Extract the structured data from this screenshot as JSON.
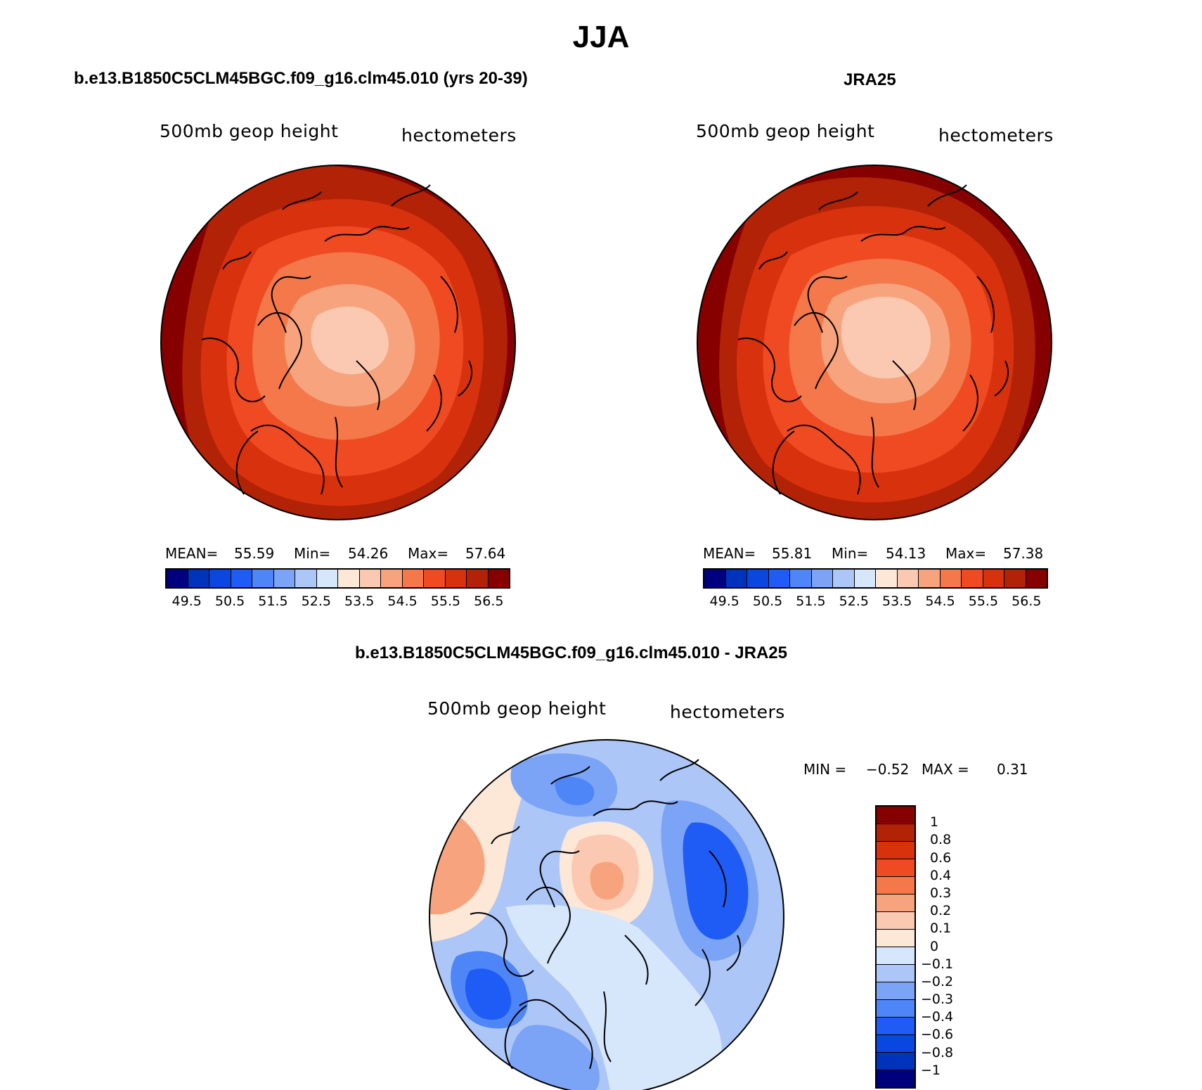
{
  "title": "JJA",
  "colors": {
    "abs_scale": [
      "#00007f",
      "#0033bb",
      "#0a47e0",
      "#1f5cf5",
      "#4f86f7",
      "#7ba4f7",
      "#adc6f8",
      "#d6e6fb",
      "#fde7d6",
      "#fbc9b1",
      "#f7a47e",
      "#f4784a",
      "#ef4a22",
      "#d8310e",
      "#b22207",
      "#870000"
    ],
    "diff_scale": [
      "#870000",
      "#b22207",
      "#d8310e",
      "#ef4a22",
      "#f4784a",
      "#f7a47e",
      "#fbc9b1",
      "#fde7d6",
      "#d6e6fb",
      "#adc6f8",
      "#7ba4f7",
      "#4f86f7",
      "#1f5cf5",
      "#0a47e0",
      "#0033bb",
      "#00007f"
    ]
  },
  "panels": {
    "left": {
      "title": "b.e13.B1850C5CLM45BGC.f09_g16.clm45.010 (yrs 20-39)",
      "variable": "500mb geop height",
      "units": "hectometers",
      "stats": {
        "mean_label": "MEAN=",
        "mean": "55.59",
        "min_label": "Min=",
        "min": "54.26",
        "max_label": "Max=",
        "max": "57.64"
      }
    },
    "right": {
      "title": "JRA25",
      "variable": "500mb geop height",
      "units": "hectometers",
      "stats": {
        "mean_label": "MEAN=",
        "mean": "55.81",
        "min_label": "Min=",
        "min": "54.13",
        "max_label": "Max=",
        "max": "57.38"
      }
    },
    "diff": {
      "title": "b.e13.B1850C5CLM45BGC.f09_g16.clm45.010 - JRA25",
      "variable": "500mb geop height",
      "units": "hectometers",
      "stats": {
        "min_label": "MIN =",
        "min": "−0.52",
        "max_label": "MAX =",
        "max": "0.31"
      }
    }
  },
  "chart_data": [
    {
      "type": "heatmap",
      "projection": "north-polar-stereographic",
      "title": "b.e13.B1850C5CLM45BGC.f09_g16.clm45.010 (yrs 20-39)",
      "field": "500mb geop height",
      "units": "hectometers",
      "mean": 55.59,
      "min": 54.26,
      "max": 57.64,
      "contour_levels": [
        49.5,
        50,
        50.5,
        51,
        51.5,
        52,
        52.5,
        53,
        53.5,
        54,
        54.5,
        55,
        55.5,
        56,
        56.5
      ],
      "colorbar_labels": [
        "49.5",
        "50.5",
        "51.5",
        "52.5",
        "53.5",
        "54.5",
        "55.5",
        "56.5"
      ]
    },
    {
      "type": "heatmap",
      "projection": "north-polar-stereographic",
      "title": "JRA25",
      "field": "500mb geop height",
      "units": "hectometers",
      "mean": 55.81,
      "min": 54.13,
      "max": 57.38,
      "contour_levels": [
        49.5,
        50,
        50.5,
        51,
        51.5,
        52,
        52.5,
        53,
        53.5,
        54,
        54.5,
        55,
        55.5,
        56,
        56.5
      ],
      "colorbar_labels": [
        "49.5",
        "50.5",
        "51.5",
        "52.5",
        "53.5",
        "54.5",
        "55.5",
        "56.5"
      ]
    },
    {
      "type": "heatmap",
      "projection": "north-polar-stereographic",
      "title": "b.e13.B1850C5CLM45BGC.f09_g16.clm45.010 - JRA25",
      "field": "500mb geop height",
      "units": "hectometers",
      "min": -0.52,
      "max": 0.31,
      "contour_levels": [
        1,
        0.8,
        0.6,
        0.4,
        0.3,
        0.2,
        0.1,
        0,
        -0.1,
        -0.2,
        -0.3,
        -0.4,
        -0.6,
        -0.8,
        -1
      ],
      "colorbar_labels": [
        "1",
        "0.8",
        "0.6",
        "0.4",
        "0.3",
        "0.2",
        "0.1",
        "0",
        "−0.1",
        "−0.2",
        "−0.3",
        "−0.4",
        "−0.6",
        "−0.8",
        "−1"
      ]
    }
  ]
}
